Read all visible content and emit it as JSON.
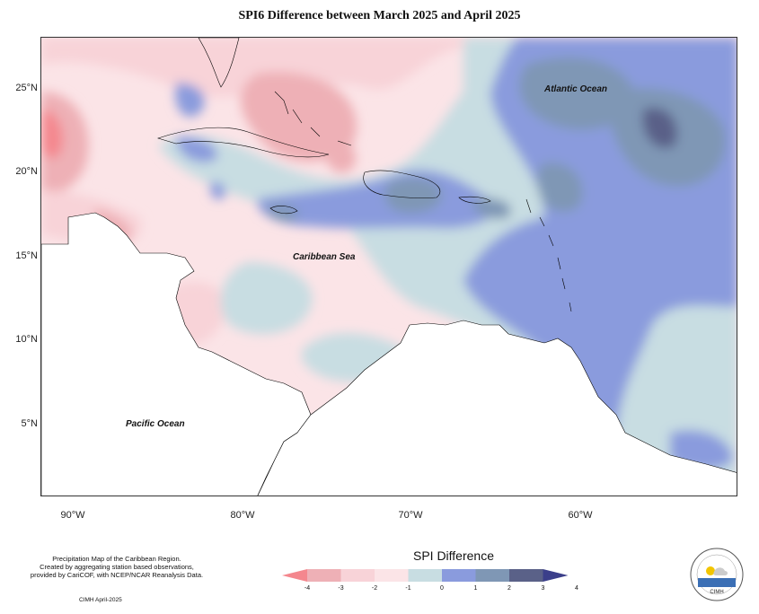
{
  "title": "SPI6 Difference between March 2025 and April 2025",
  "lat_labels": [
    "25°N",
    "20°N",
    "15°N",
    "10°N",
    "5°N"
  ],
  "lon_labels": [
    "90°W",
    "80°W",
    "70°W",
    "60°W"
  ],
  "ocean_labels": {
    "atlantic": "Atlantic Ocean",
    "caribbean": "Caribbean Sea",
    "pacific": "Pacific Ocean"
  },
  "credit": {
    "line1": "Precipitation Map of the Caribbean Region.",
    "line2": "Created by aggregating station based observations,",
    "line3": "provided by CariCOF, with NCEP/NCAR Reanalysis Data.",
    "date": "CIMH April-2025"
  },
  "legend": {
    "title": "SPI Difference",
    "ticks": [
      "-4",
      "-3",
      "-2",
      "-1",
      "0",
      "1",
      "2",
      "3",
      "4"
    ],
    "colors": [
      "#f4878e",
      "#eeb0b6",
      "#f8d3d8",
      "#fbe4e7",
      "#c8dde2",
      "#8a9bdd",
      "#7f97b5",
      "#5a6188",
      "#3b3f8a"
    ]
  },
  "logo_icon": "cimh-logo-icon"
}
